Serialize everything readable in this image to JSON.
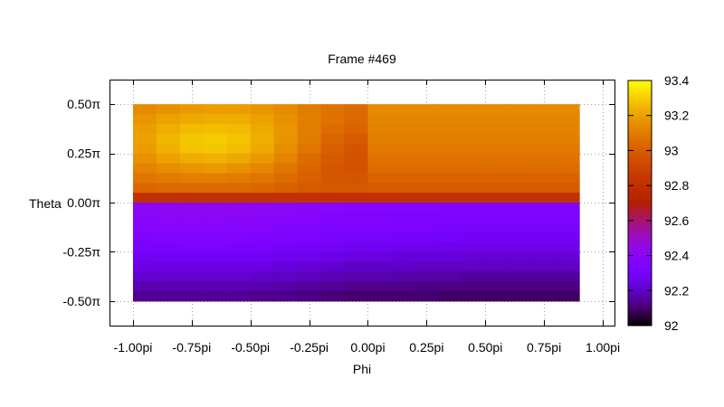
{
  "chart_data": {
    "type": "heatmap",
    "title": "Frame #469",
    "xlabel": "Phi",
    "ylabel": "Theta",
    "xlim": [
      -1.1,
      1.05
    ],
    "ylim": [
      -0.625,
      0.625
    ],
    "x_ticks": [
      {
        "value": -1.0,
        "label": "-1.00pi"
      },
      {
        "value": -0.75,
        "label": "-0.75pi"
      },
      {
        "value": -0.5,
        "label": "-0.50pi"
      },
      {
        "value": -0.25,
        "label": "-0.25pi"
      },
      {
        "value": 0.0,
        "label": "0.00pi"
      },
      {
        "value": 0.25,
        "label": "0.25pi"
      },
      {
        "value": 0.5,
        "label": "0.50pi"
      },
      {
        "value": 0.75,
        "label": "0.75pi"
      },
      {
        "value": 1.0,
        "label": "1.00pi"
      }
    ],
    "y_ticks": [
      {
        "value": 0.5,
        "label": "0.50π"
      },
      {
        "value": 0.25,
        "label": "0.25π"
      },
      {
        "value": 0.0,
        "label": "0.00π"
      },
      {
        "value": -0.25,
        "label": "-0.25π"
      },
      {
        "value": -0.5,
        "label": "-0.50π"
      }
    ],
    "grid": true,
    "colorbar": {
      "min": 92,
      "max": 93.4,
      "ticks": [
        {
          "value": 93.4,
          "label": "93.4"
        },
        {
          "value": 93.2,
          "label": "93.2"
        },
        {
          "value": 93.0,
          "label": "93"
        },
        {
          "value": 92.8,
          "label": "92.8"
        },
        {
          "value": 92.6,
          "label": "92.6"
        },
        {
          "value": 92.4,
          "label": "92.4"
        },
        {
          "value": 92.2,
          "label": "92.2"
        },
        {
          "value": 92.0,
          "label": "92"
        }
      ]
    },
    "data_extent": {
      "x": [
        -1.0,
        0.9
      ],
      "y": [
        -0.5,
        0.5
      ]
    },
    "phi_columns": [
      -0.95,
      -0.85,
      -0.75,
      -0.65,
      -0.55,
      -0.45,
      -0.35,
      -0.25,
      -0.15,
      -0.05,
      0.05,
      0.15,
      0.25,
      0.35,
      0.45,
      0.55,
      0.65,
      0.75,
      0.85
    ],
    "theta_rows": [
      0.475,
      0.425,
      0.375,
      0.325,
      0.275,
      0.225,
      0.175,
      0.125,
      0.075,
      0.025,
      -0.025,
      -0.075,
      -0.125,
      -0.175,
      -0.225,
      -0.275,
      -0.325,
      -0.375,
      -0.425,
      -0.475
    ],
    "values": [
      [
        93.14,
        93.16,
        93.18,
        93.19,
        93.19,
        93.17,
        93.14,
        93.1,
        93.07,
        93.05,
        93.14,
        93.14,
        93.14,
        93.14,
        93.14,
        93.14,
        93.14,
        93.14,
        93.14
      ],
      [
        93.17,
        93.2,
        93.22,
        93.23,
        93.23,
        93.2,
        93.16,
        93.11,
        93.07,
        93.04,
        93.13,
        93.13,
        93.13,
        93.13,
        93.13,
        93.13,
        93.13,
        93.13,
        93.13
      ],
      [
        93.19,
        93.23,
        93.26,
        93.27,
        93.26,
        93.22,
        93.17,
        93.11,
        93.05,
        93.02,
        93.12,
        93.12,
        93.12,
        93.12,
        93.12,
        93.12,
        93.12,
        93.12,
        93.12
      ],
      [
        93.2,
        93.25,
        93.29,
        93.3,
        93.28,
        93.23,
        93.17,
        93.1,
        93.03,
        92.99,
        93.11,
        93.11,
        93.11,
        93.11,
        93.11,
        93.11,
        93.11,
        93.11,
        93.11
      ],
      [
        93.19,
        93.24,
        93.28,
        93.29,
        93.27,
        93.22,
        93.15,
        93.08,
        93.01,
        92.97,
        93.09,
        93.09,
        93.09,
        93.09,
        93.09,
        93.09,
        93.09,
        93.09,
        93.09
      ],
      [
        93.16,
        93.2,
        93.23,
        93.24,
        93.22,
        93.18,
        93.12,
        93.05,
        92.99,
        92.96,
        93.07,
        93.07,
        93.07,
        93.07,
        93.07,
        93.07,
        93.07,
        93.07,
        93.07
      ],
      [
        93.12,
        93.15,
        93.17,
        93.18,
        93.16,
        93.13,
        93.08,
        93.03,
        92.98,
        92.96,
        93.05,
        93.05,
        93.05,
        93.05,
        93.05,
        93.05,
        93.05,
        93.05,
        93.05
      ],
      [
        93.08,
        93.1,
        93.11,
        93.11,
        93.1,
        93.08,
        93.05,
        93.01,
        92.98,
        92.97,
        93.02,
        93.02,
        93.02,
        93.02,
        93.02,
        93.02,
        93.02,
        93.02,
        93.02
      ],
      [
        93.03,
        93.04,
        93.04,
        93.04,
        93.04,
        93.03,
        93.01,
        92.99,
        92.98,
        92.98,
        92.99,
        92.99,
        92.99,
        92.99,
        92.99,
        92.99,
        92.99,
        92.99,
        92.99
      ],
      [
        92.8,
        92.8,
        92.8,
        92.8,
        92.8,
        92.8,
        92.8,
        92.8,
        92.8,
        92.8,
        92.8,
        92.8,
        92.8,
        92.8,
        92.8,
        92.8,
        92.8,
        92.8,
        92.8
      ],
      [
        92.42,
        92.42,
        92.43,
        92.43,
        92.43,
        92.42,
        92.41,
        92.4,
        92.39,
        92.38,
        92.38,
        92.37,
        92.37,
        92.36,
        92.36,
        92.36,
        92.36,
        92.36,
        92.36
      ],
      [
        92.4,
        92.41,
        92.41,
        92.41,
        92.41,
        92.4,
        92.39,
        92.38,
        92.37,
        92.36,
        92.36,
        92.35,
        92.35,
        92.35,
        92.34,
        92.34,
        92.34,
        92.34,
        92.34
      ],
      [
        92.38,
        92.39,
        92.39,
        92.39,
        92.38,
        92.38,
        92.37,
        92.36,
        92.35,
        92.34,
        92.34,
        92.33,
        92.33,
        92.32,
        92.32,
        92.32,
        92.32,
        92.32,
        92.32
      ],
      [
        92.35,
        92.36,
        92.36,
        92.36,
        92.36,
        92.35,
        92.34,
        92.33,
        92.32,
        92.31,
        92.31,
        92.3,
        92.3,
        92.3,
        92.29,
        92.29,
        92.29,
        92.29,
        92.29
      ],
      [
        92.32,
        92.32,
        92.33,
        92.33,
        92.32,
        92.32,
        92.31,
        92.3,
        92.29,
        92.28,
        92.28,
        92.27,
        92.27,
        92.26,
        92.26,
        92.26,
        92.26,
        92.26,
        92.26
      ],
      [
        92.28,
        92.29,
        92.29,
        92.29,
        92.29,
        92.28,
        92.27,
        92.26,
        92.25,
        92.24,
        92.24,
        92.23,
        92.23,
        92.23,
        92.22,
        92.22,
        92.22,
        92.22,
        92.22
      ],
      [
        92.25,
        92.25,
        92.25,
        92.25,
        92.25,
        92.24,
        92.23,
        92.22,
        92.21,
        92.2,
        92.2,
        92.2,
        92.19,
        92.19,
        92.19,
        92.19,
        92.19,
        92.19,
        92.19
      ],
      [
        92.21,
        92.21,
        92.21,
        92.21,
        92.21,
        92.2,
        92.2,
        92.19,
        92.18,
        92.17,
        92.17,
        92.16,
        92.16,
        92.16,
        92.15,
        92.15,
        92.15,
        92.15,
        92.15
      ],
      [
        92.17,
        92.17,
        92.17,
        92.17,
        92.17,
        92.17,
        92.16,
        92.15,
        92.14,
        92.13,
        92.13,
        92.13,
        92.12,
        92.12,
        92.12,
        92.12,
        92.12,
        92.12,
        92.12
      ],
      [
        92.14,
        92.14,
        92.14,
        92.14,
        92.14,
        92.13,
        92.13,
        92.12,
        92.11,
        92.1,
        92.1,
        92.1,
        92.1,
        92.09,
        92.09,
        92.09,
        92.09,
        92.09,
        92.09
      ]
    ]
  }
}
